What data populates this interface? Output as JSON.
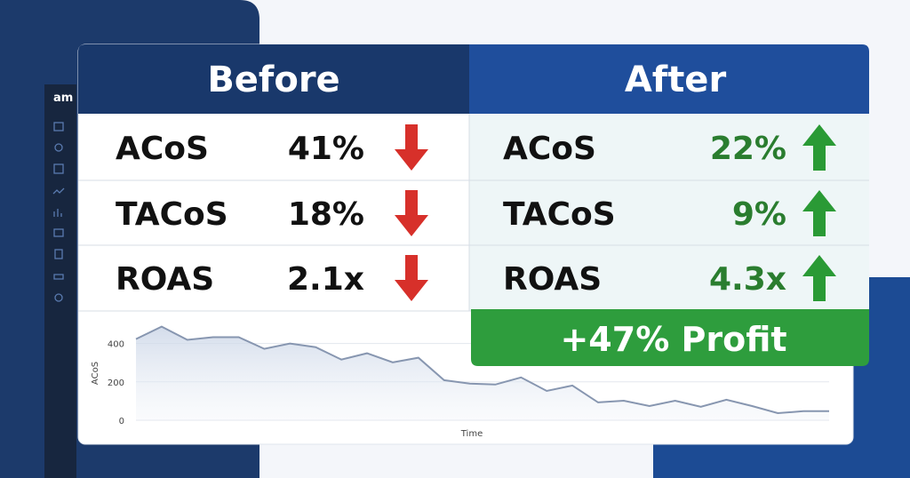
{
  "logo": "am",
  "table": {
    "before": {
      "title": "Before",
      "rows": [
        [
          "ACoS",
          "41%"
        ],
        [
          "TACoS",
          "18%"
        ],
        [
          "ROAS",
          "2.1x"
        ]
      ]
    },
    "after": {
      "title": "After",
      "rows": [
        [
          "ACoS",
          "22%"
        ],
        [
          "TACoS",
          "9%"
        ],
        [
          "ROAS",
          "4.3x"
        ]
      ],
      "banner": "+47% Profit"
    }
  },
  "chart_data": {
    "type": "line",
    "y_label": "ACoS",
    "x_label": "Time",
    "ylim": [
      0,
      500
    ],
    "yticks": [
      0,
      200,
      400
    ],
    "grid": true,
    "color": "#8796b0",
    "values": [
      423,
      488,
      419,
      433,
      433,
      372,
      400,
      381,
      316,
      349,
      302,
      326,
      209,
      191,
      186,
      223,
      153,
      181,
      93,
      102,
      74,
      102,
      70,
      107,
      74,
      37,
      47,
      47
    ]
  }
}
